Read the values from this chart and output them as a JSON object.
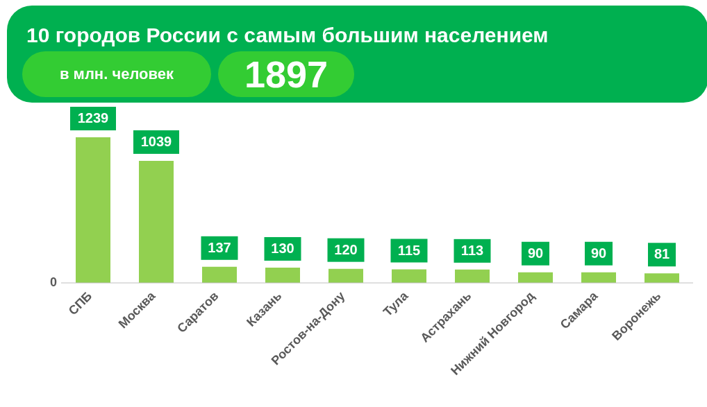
{
  "chart_data": {
    "type": "bar",
    "title": "10 городов России с самым большим населением",
    "annotations": [
      "в млн. человек",
      "1897",
      "0"
    ],
    "categories": [
      "СПБ",
      "Москва",
      "Саратов",
      "Казань",
      "Ростов-на-Дону",
      "Тула",
      "Астрахань",
      "Нижний Новгород",
      "Самара",
      "Воронежь"
    ],
    "values": [
      1239,
      1039,
      137,
      130,
      120,
      115,
      113,
      90,
      90,
      81
    ],
    "color": "#92d050",
    "data_labels": true,
    "grid": false
  }
}
